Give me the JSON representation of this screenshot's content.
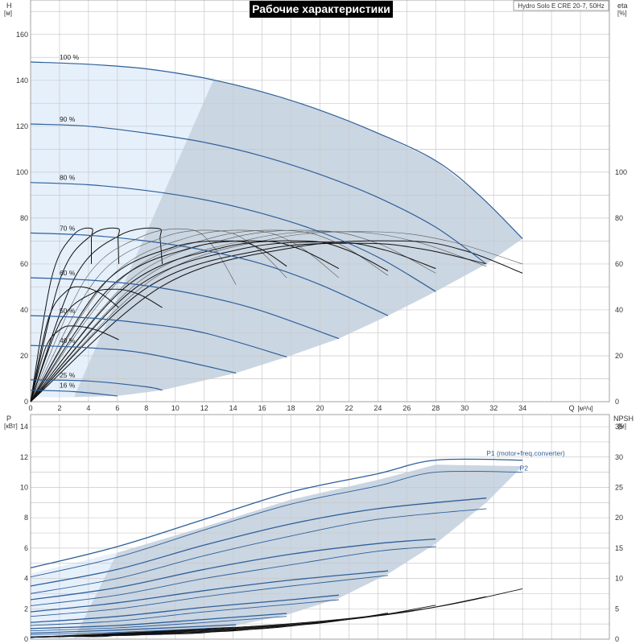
{
  "title": "Рабочие характеристики",
  "model_label": "Hydro Solo E CRE 20-7, 50Hz",
  "colors": {
    "band_light": "#e6f0fb",
    "band_dark": "#cad6e2",
    "speed_curve": "#2f5f9a",
    "eff_curve": "#111111",
    "title_bg": "#000000",
    "title_fg": "#ffffff"
  },
  "chart_data": [
    {
      "id": "top",
      "type": "line",
      "axes": {
        "x": {
          "label": "Q",
          "unit": "[м³/ч]",
          "lim": [
            0,
            40
          ],
          "ticks": [
            0,
            2,
            4,
            6,
            8,
            10,
            12,
            14,
            16,
            18,
            20,
            22,
            24,
            26,
            28,
            30,
            32,
            34
          ]
        },
        "y_left": {
          "label": "H",
          "unit": "[м]",
          "lim": [
            0,
            175
          ],
          "ticks": [
            0,
            20,
            40,
            60,
            80,
            100,
            120,
            140,
            160
          ]
        },
        "y_right": {
          "label": "eta",
          "unit": "[%]",
          "lim": [
            0,
            175
          ],
          "ticks": [
            0,
            20,
            40,
            60,
            80,
            100
          ]
        }
      },
      "grid": true,
      "speed_curves": [
        {
          "name": "100 %",
          "label_at": [
            2,
            148
          ],
          "points": [
            [
              0,
              148
            ],
            [
              4,
              147
            ],
            [
              8,
              145
            ],
            [
              12,
              141
            ],
            [
              16,
              135
            ],
            [
              20,
              127
            ],
            [
              24,
              117
            ],
            [
              28,
              105
            ],
            [
              31,
              90
            ],
            [
              34,
              71
            ]
          ]
        },
        {
          "name": "90 %",
          "label_at": [
            2,
            121
          ],
          "points": [
            [
              0,
              121
            ],
            [
              4,
              120
            ],
            [
              8,
              117
            ],
            [
              12,
              113
            ],
            [
              16,
              107
            ],
            [
              20,
              99
            ],
            [
              24,
              89
            ],
            [
              28,
              76
            ],
            [
              31.5,
              60
            ]
          ]
        },
        {
          "name": "80 %",
          "label_at": [
            2,
            95.5
          ],
          "points": [
            [
              0,
              95.5
            ],
            [
              4,
              94.5
            ],
            [
              8,
              92
            ],
            [
              12,
              88
            ],
            [
              16,
              82
            ],
            [
              20,
              74
            ],
            [
              24,
              63
            ],
            [
              28,
              48
            ]
          ]
        },
        {
          "name": "70 %",
          "label_at": [
            2,
            73.5
          ],
          "points": [
            [
              0,
              73.5
            ],
            [
              4,
              72.5
            ],
            [
              8,
              70
            ],
            [
              12,
              66
            ],
            [
              16,
              60
            ],
            [
              20,
              51
            ],
            [
              24.7,
              37.5
            ]
          ]
        },
        {
          "name": "60 %",
          "label_at": [
            2,
            54
          ],
          "points": [
            [
              0,
              54
            ],
            [
              4,
              53
            ],
            [
              8,
              50.5
            ],
            [
              12,
              46
            ],
            [
              16,
              39.5
            ],
            [
              21.3,
              27.5
            ]
          ]
        },
        {
          "name": "50 %",
          "label_at": [
            2,
            37.5
          ],
          "points": [
            [
              0,
              37.5
            ],
            [
              4,
              36.5
            ],
            [
              8,
              34
            ],
            [
              12,
              30
            ],
            [
              17.7,
              19.5
            ]
          ]
        },
        {
          "name": "40 %",
          "label_at": [
            2,
            24.5
          ],
          "points": [
            [
              0,
              24.5
            ],
            [
              4,
              23.5
            ],
            [
              8,
              21
            ],
            [
              14.2,
              12.5
            ]
          ]
        },
        {
          "name": "25 %",
          "label_at": [
            2,
            9.5
          ],
          "points": [
            [
              0,
              9.5
            ],
            [
              4,
              9
            ],
            [
              8,
              6.5
            ],
            [
              9.1,
              5
            ]
          ]
        },
        {
          "name": "16 %",
          "label_at": [
            2,
            5
          ],
          "points": [
            [
              0,
              5
            ],
            [
              3,
              4.4
            ],
            [
              6,
              2.5
            ]
          ]
        }
      ],
      "operating_area": {
        "outer": [
          [
            0,
            148
          ],
          [
            4,
            147
          ],
          [
            8,
            145
          ],
          [
            12,
            141
          ],
          [
            16,
            135
          ],
          [
            20,
            127
          ],
          [
            24,
            117
          ],
          [
            28,
            105
          ],
          [
            31,
            90
          ],
          [
            34,
            71
          ],
          [
            31.5,
            60
          ],
          [
            28,
            48
          ],
          [
            24.7,
            37.5
          ],
          [
            21.3,
            27.5
          ],
          [
            17.7,
            19.5
          ],
          [
            14.2,
            12.5
          ],
          [
            9.1,
            5
          ],
          [
            6,
            2.5
          ],
          [
            3,
            2
          ],
          [
            0,
            2
          ]
        ],
        "lighter_wedge": [
          [
            0,
            148
          ],
          [
            4,
            147
          ],
          [
            8,
            145
          ],
          [
            12.7,
            141
          ],
          [
            3,
            2
          ],
          [
            0,
            2
          ]
        ]
      },
      "efficiency_curves": [
        {
          "q_end": 4.2,
          "peak_q": 4.2,
          "peak": 75.5,
          "end_eta": 60
        },
        {
          "q_end": 6.1,
          "peak_q": 6.0,
          "peak": 75.5,
          "end_eta": 60
        },
        {
          "q_end": 9.1,
          "peak_q": 8.8,
          "peak": 75.5,
          "end_eta": 60
        },
        {
          "q_end": 14.2,
          "peak_q": 11,
          "peak": 75,
          "end_eta": 51
        },
        {
          "q_end": 17.7,
          "peak_q": 13,
          "peak": 74.5,
          "end_eta": 54
        },
        {
          "q_end": 21.3,
          "peak_q": 15.5,
          "peak": 74.5,
          "end_eta": 54
        },
        {
          "q_end": 24.7,
          "peak_q": 18,
          "peak": 74.5,
          "end_eta": 55
        },
        {
          "q_end": 28.0,
          "peak_q": 20,
          "peak": 74.5,
          "end_eta": 56
        },
        {
          "q_end": 31.5,
          "peak_q": 22,
          "peak": 74,
          "end_eta": 59
        },
        {
          "q_end": 34,
          "peak_q": 24,
          "peak": 74,
          "end_eta": 60
        },
        {
          "q_end": 34,
          "peak_q": 26,
          "peak": 70,
          "end_eta": 56
        },
        {
          "q_end": 31.5,
          "peak_q": 23,
          "peak": 69,
          "end_eta": 60
        },
        {
          "q_end": 28,
          "peak_q": 21,
          "peak": 69.5,
          "end_eta": 58
        },
        {
          "q_end": 24.7,
          "peak_q": 19,
          "peak": 70,
          "end_eta": 57
        },
        {
          "q_end": 21.3,
          "peak_q": 16,
          "peak": 70,
          "end_eta": 58
        },
        {
          "q_end": 17.7,
          "peak_q": 14,
          "peak": 70,
          "end_eta": 59
        },
        {
          "q_end": 6.1,
          "peak_q": 3.5,
          "peak": 50,
          "end_eta": 41
        },
        {
          "q_end": 9.1,
          "peak_q": 6,
          "peak": 49,
          "end_eta": 41
        },
        {
          "q_end": 6.1,
          "peak_q": 3.0,
          "peak": 33,
          "end_eta": 27
        }
      ]
    },
    {
      "id": "bottom",
      "type": "line",
      "axes": {
        "x": {
          "label": "Q",
          "unit": "[м³/ч]",
          "lim": [
            0,
            40
          ]
        },
        "y_left": {
          "label": "P",
          "unit": "[кВт]",
          "lim": [
            0,
            14.8
          ],
          "ticks": [
            0,
            2,
            4,
            6,
            8,
            10,
            12,
            14
          ]
        },
        "y_right": {
          "label": "NPSH",
          "unit": "[м]",
          "lim": [
            0,
            37
          ],
          "ticks": [
            0,
            5,
            10,
            15,
            20,
            25,
            30,
            35
          ]
        }
      },
      "grid": true,
      "series_labels": [
        {
          "name": "P1 (motor+freq.converter)",
          "at": [
            31.5,
            12.0
          ]
        },
        {
          "name": "P2",
          "at": [
            33.8,
            11.0
          ]
        }
      ],
      "p1_curves": [
        {
          "points": [
            [
              0,
              4.7
            ],
            [
              6,
              6.1
            ],
            [
              12,
              7.9
            ],
            [
              18,
              9.7
            ],
            [
              24,
              10.9
            ],
            [
              28,
              11.8
            ],
            [
              34,
              11.8
            ]
          ]
        },
        {
          "points": [
            [
              0,
              3.5
            ],
            [
              6,
              4.6
            ],
            [
              12,
              6.2
            ],
            [
              18,
              7.6
            ],
            [
              24,
              8.6
            ],
            [
              31.5,
              9.3
            ]
          ]
        },
        {
          "points": [
            [
              0,
              2.6
            ],
            [
              6,
              3.4
            ],
            [
              12,
              4.6
            ],
            [
              18,
              5.6
            ],
            [
              24,
              6.3
            ],
            [
              28,
              6.6
            ]
          ]
        },
        {
          "points": [
            [
              0,
              1.8
            ],
            [
              6,
              2.4
            ],
            [
              12,
              3.2
            ],
            [
              18,
              3.9
            ],
            [
              24.7,
              4.5
            ]
          ]
        },
        {
          "points": [
            [
              0,
              1.1
            ],
            [
              6,
              1.5
            ],
            [
              12,
              2.1
            ],
            [
              18,
              2.6
            ],
            [
              21.3,
              2.9
            ]
          ]
        },
        {
          "points": [
            [
              0,
              0.7
            ],
            [
              6,
              0.9
            ],
            [
              12,
              1.3
            ],
            [
              17.7,
              1.7
            ]
          ]
        },
        {
          "points": [
            [
              0,
              0.4
            ],
            [
              6,
              0.6
            ],
            [
              14.2,
              0.95
            ]
          ]
        },
        {
          "points": [
            [
              0,
              0.15
            ],
            [
              9.1,
              0.32
            ]
          ]
        }
      ],
      "p2_curves": [
        {
          "points": [
            [
              0,
              4.1
            ],
            [
              6,
              5.4
            ],
            [
              12,
              7.2
            ],
            [
              18,
              8.9
            ],
            [
              24,
              10.1
            ],
            [
              28,
              11.0
            ],
            [
              34,
              11.0
            ]
          ]
        },
        {
          "points": [
            [
              0,
              3.0
            ],
            [
              6,
              4.0
            ],
            [
              12,
              5.5
            ],
            [
              18,
              6.8
            ],
            [
              24,
              7.9
            ],
            [
              31.5,
              8.6
            ]
          ]
        },
        {
          "points": [
            [
              0,
              2.2
            ],
            [
              6,
              2.9
            ],
            [
              12,
              4.0
            ],
            [
              18,
              4.9
            ],
            [
              24,
              5.8
            ],
            [
              28,
              6.1
            ]
          ]
        },
        {
          "points": [
            [
              0,
              1.5
            ],
            [
              6,
              2.0
            ],
            [
              12,
              2.8
            ],
            [
              18,
              3.5
            ],
            [
              24.7,
              4.2
            ]
          ]
        },
        {
          "points": [
            [
              0,
              0.9
            ],
            [
              6,
              1.2
            ],
            [
              12,
              1.8
            ],
            [
              18,
              2.3
            ],
            [
              21.3,
              2.6
            ]
          ]
        },
        {
          "points": [
            [
              0,
              0.55
            ],
            [
              6,
              0.75
            ],
            [
              12,
              1.1
            ],
            [
              17.7,
              1.5
            ]
          ]
        },
        {
          "points": [
            [
              0,
              0.3
            ],
            [
              6,
              0.45
            ],
            [
              14.2,
              0.8
            ]
          ]
        }
      ],
      "npsh_curves": [
        {
          "q_start": 0,
          "q_end": 6.1,
          "end": 0.7
        },
        {
          "q_start": 0,
          "q_end": 9.1,
          "end": 1.1
        },
        {
          "q_start": 0,
          "q_end": 14.2,
          "end": 1.6
        },
        {
          "q_start": 0,
          "q_end": 17.7,
          "end": 2.3
        },
        {
          "q_start": 0,
          "q_end": 21.3,
          "end": 3.2
        },
        {
          "q_start": 0,
          "q_end": 24.7,
          "end": 4.3
        },
        {
          "q_start": 0,
          "q_end": 28.0,
          "end": 5.6
        },
        {
          "q_start": 0,
          "q_end": 31.5,
          "end": 7.0
        },
        {
          "q_start": 0,
          "q_end": 34.0,
          "end": 8.3
        }
      ],
      "operating_area": {
        "outer": [
          [
            0,
            4.3
          ],
          [
            6,
            5.7
          ],
          [
            12,
            7.4
          ],
          [
            18,
            9.2
          ],
          [
            24,
            10.5
          ],
          [
            28,
            11.5
          ],
          [
            34,
            11.4
          ],
          [
            31.5,
            9.0
          ],
          [
            28,
            6.3
          ],
          [
            24.7,
            4.3
          ],
          [
            21.3,
            2.7
          ],
          [
            17.7,
            1.6
          ],
          [
            14.2,
            0.9
          ],
          [
            9.1,
            0.35
          ],
          [
            3,
            0.05
          ],
          [
            0,
            0.05
          ]
        ],
        "lighter_wedge": [
          [
            0,
            4.3
          ],
          [
            6,
            5.7
          ],
          [
            3,
            0.05
          ],
          [
            0,
            0.05
          ]
        ]
      }
    }
  ]
}
